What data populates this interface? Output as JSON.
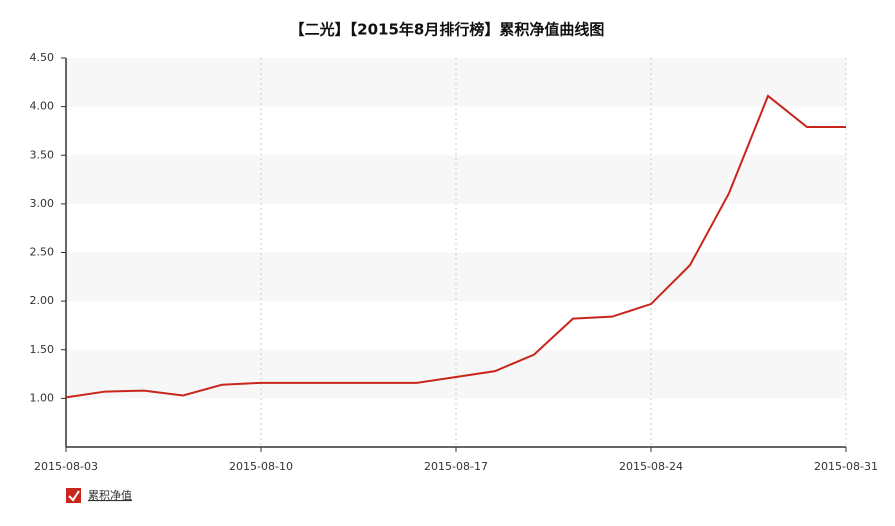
{
  "chart_data": {
    "type": "line",
    "title": "【二光】【2015年8月排行榜】累积净值曲线图",
    "categories": [
      "2015-08-03",
      null,
      null,
      null,
      null,
      "2015-08-10",
      null,
      null,
      null,
      null,
      "2015-08-17",
      null,
      null,
      null,
      null,
      "2015-08-24",
      null,
      null,
      null,
      null,
      "2015-08-31"
    ],
    "series": [
      {
        "name": "累积净值",
        "color": "#c8261c",
        "values": [
          1.01,
          1.07,
          1.08,
          1.03,
          1.14,
          1.16,
          1.16,
          1.16,
          1.16,
          1.16,
          1.22,
          1.28,
          1.45,
          1.82,
          1.84,
          1.97,
          2.37,
          3.11,
          4.11,
          3.79,
          3.79
        ]
      }
    ],
    "ylim": [
      0.5,
      4.5
    ],
    "yticks": [
      {
        "value": 1,
        "label": "1.00"
      },
      {
        "value": 1.5,
        "label": "1.50"
      },
      {
        "value": 2,
        "label": "2.00"
      },
      {
        "value": 2.5,
        "label": "2.50"
      },
      {
        "value": 3,
        "label": "3.00"
      },
      {
        "value": 3.5,
        "label": "3.50"
      },
      {
        "value": 4,
        "label": "4.00"
      },
      {
        "value": 4.5,
        "label": "4.50"
      }
    ],
    "grid": true
  }
}
